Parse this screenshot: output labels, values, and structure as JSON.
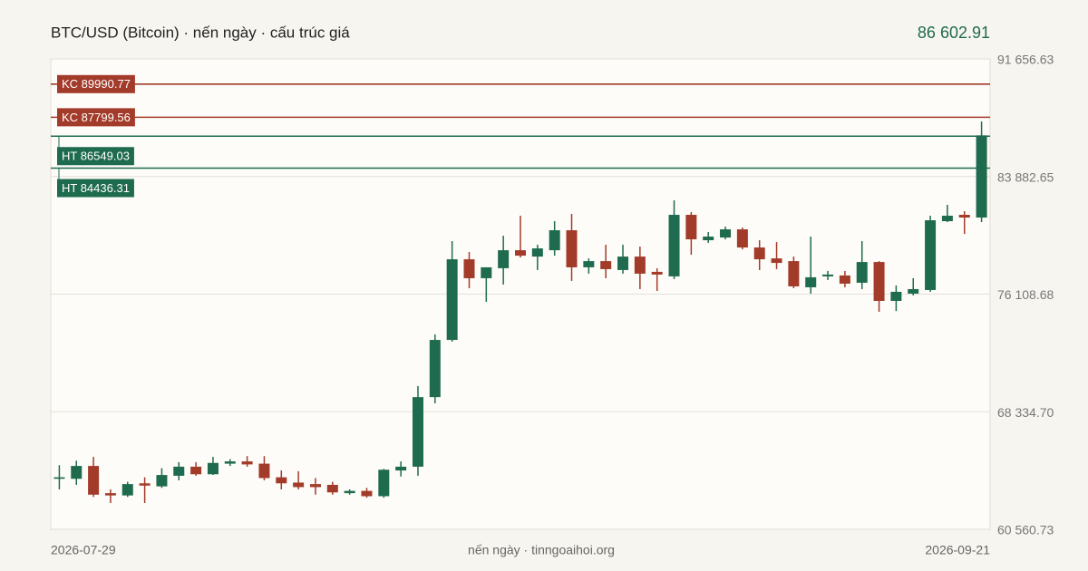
{
  "chart_data": {
    "type": "candlestick",
    "title": "BTC/USD (Bitcoin) · nến ngày · cấu trúc giá",
    "last_price": {
      "value": 86602.91,
      "label": "86 602.91"
    },
    "footer": "nến ngày · tinngoaihoi.org",
    "categories": [
      "2026-07-29",
      null,
      null,
      null,
      null,
      null,
      null,
      null,
      null,
      null,
      null,
      null,
      null,
      null,
      null,
      null,
      null,
      null,
      null,
      null,
      null,
      null,
      null,
      null,
      null,
      null,
      null,
      null,
      null,
      null,
      null,
      null,
      null,
      null,
      null,
      null,
      null,
      null,
      null,
      null,
      null,
      null,
      null,
      null,
      null,
      null,
      null,
      null,
      null,
      null,
      null,
      null,
      null,
      null,
      "2026-09-21"
    ],
    "up_color": "#1f6b4f",
    "down_color": "#a33b2a",
    "open": [
      63900,
      63900,
      64750,
      62950,
      62800,
      63600,
      63400,
      64100,
      64700,
      64200,
      64900,
      65050,
      64900,
      64000,
      63650,
      63550,
      63500,
      62950,
      63100,
      62750,
      64450,
      64700,
      69300,
      73080,
      78410,
      77160,
      77820,
      79010,
      78590,
      79010,
      80330,
      77880,
      78290,
      77700,
      78590,
      77580,
      77280,
      81350,
      79670,
      79850,
      80390,
      79190,
      78470,
      78290,
      76560,
      77280,
      77340,
      76860,
      78230,
      75660,
      76140,
      76380,
      80930,
      81350,
      81170
    ],
    "high": [
      64800,
      65100,
      65350,
      63200,
      63700,
      64000,
      64600,
      65000,
      65000,
      65350,
      65200,
      65400,
      65400,
      64450,
      64400,
      63950,
      63700,
      63200,
      63300,
      64550,
      65050,
      70030,
      73440,
      79610,
      78890,
      77880,
      79970,
      81290,
      79370,
      80930,
      81410,
      78470,
      79370,
      79370,
      79250,
      77820,
      82310,
      81530,
      80210,
      80570,
      80510,
      79670,
      79550,
      78590,
      79910,
      77640,
      77640,
      79610,
      78290,
      76680,
      77160,
      81290,
      82010,
      81590,
      87520
    ],
    "low": [
      63200,
      63500,
      62700,
      62300,
      62700,
      62300,
      63300,
      63800,
      64100,
      64150,
      64750,
      64700,
      63800,
      63200,
      63200,
      62850,
      62850,
      62850,
      62650,
      62650,
      64050,
      64100,
      68890,
      72960,
      76500,
      75600,
      76740,
      78530,
      77700,
      78650,
      76980,
      77460,
      77160,
      77460,
      76440,
      76320,
      77100,
      78710,
      79490,
      79730,
      79070,
      77700,
      77760,
      76500,
      76140,
      77040,
      76560,
      76440,
      74940,
      74990,
      76020,
      76260,
      80870,
      80090,
      80870
    ],
    "close": [
      64000,
      64750,
      62850,
      62800,
      63550,
      63450,
      64150,
      64700,
      64200,
      64950,
      65050,
      64850,
      63950,
      63600,
      63350,
      63350,
      63000,
      63100,
      62750,
      64500,
      64700,
      69300,
      73080,
      78410,
      77160,
      77880,
      79010,
      78650,
      79130,
      80330,
      77880,
      78290,
      77760,
      78590,
      77460,
      77400,
      81350,
      79730,
      79910,
      80390,
      79190,
      78410,
      78170,
      76620,
      77220,
      77400,
      76800,
      78230,
      75660,
      76260,
      76440,
      80990,
      81290,
      81170,
      86602.91
    ],
    "levels": [
      {
        "value": 89990.77,
        "label": "KC 89990.77",
        "color": "#a33b2a"
      },
      {
        "value": 87799.56,
        "label": "KC 87799.56",
        "color": "#a33b2a"
      },
      {
        "value": 86549.03,
        "label": "HT 86549.03",
        "color": "#1f6b4f"
      },
      {
        "value": 84436.31,
        "label": "HT 84436.31",
        "color": "#1f6b4f"
      }
    ],
    "ylim": [
      60560.73,
      91656.63
    ],
    "yticks": [
      {
        "value": 60560.73,
        "label": "60 560.73"
      },
      {
        "value": 68334.7,
        "label": "68 334.70"
      },
      {
        "value": 76108.68,
        "label": "76 108.68"
      },
      {
        "value": 83882.65,
        "label": "83 882.65"
      },
      {
        "value": 91656.63,
        "label": "91 656.63"
      }
    ],
    "grid": true
  }
}
